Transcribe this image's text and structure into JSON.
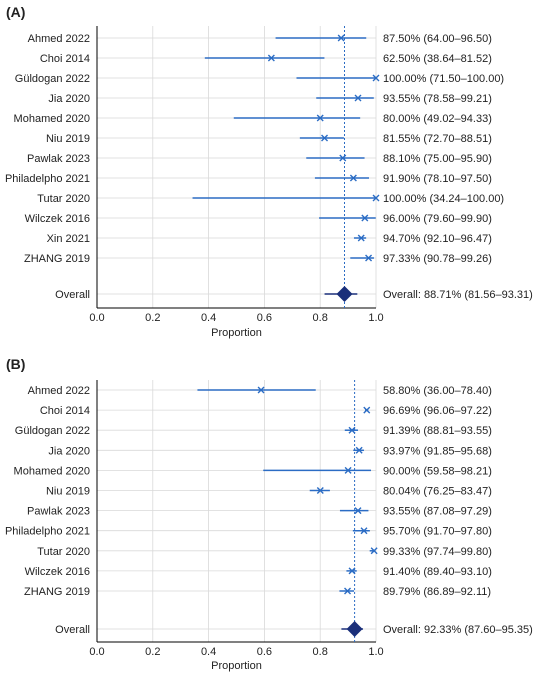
{
  "colors": {
    "series": "#2b6cc4",
    "summary": "#1a2f7a",
    "grid": "#d9d9d9",
    "text": "#222222"
  },
  "chart_data": [
    {
      "panel_label": "(A)",
      "type": "forest",
      "xlabel": "Proportion",
      "xlim": [
        0,
        1
      ],
      "xticks": [
        "0.0",
        "0.2",
        "0.4",
        "0.6",
        "0.8",
        "1.0"
      ],
      "grid": true,
      "reference_line": 0.8871,
      "studies": [
        {
          "label": "Ahmed 2022",
          "est": 0.875,
          "lo": 0.64,
          "hi": 0.965,
          "ci_text": "87.50% (64.00–96.50)"
        },
        {
          "label": "Choi 2014",
          "est": 0.625,
          "lo": 0.3864,
          "hi": 0.8152,
          "ci_text": "62.50% (38.64–81.52)"
        },
        {
          "label": "Güldogan 2022",
          "est": 1.0,
          "lo": 0.715,
          "hi": 1.0,
          "ci_text": "100.00% (71.50–100.00)"
        },
        {
          "label": "Jia 2020",
          "est": 0.9355,
          "lo": 0.7858,
          "hi": 0.9921,
          "ci_text": "93.55% (78.58–99.21)"
        },
        {
          "label": "Mohamed 2020",
          "est": 0.8,
          "lo": 0.4902,
          "hi": 0.9433,
          "ci_text": "80.00% (49.02–94.33)"
        },
        {
          "label": "Niu 2019",
          "est": 0.8155,
          "lo": 0.727,
          "hi": 0.8851,
          "ci_text": "81.55% (72.70–88.51)"
        },
        {
          "label": "Pawlak 2023",
          "est": 0.881,
          "lo": 0.75,
          "hi": 0.959,
          "ci_text": "88.10% (75.00–95.90)"
        },
        {
          "label": "Philadelpho 2021",
          "est": 0.919,
          "lo": 0.781,
          "hi": 0.975,
          "ci_text": "91.90% (78.10–97.50)"
        },
        {
          "label": "Tutar 2020",
          "est": 1.0,
          "lo": 0.3424,
          "hi": 1.0,
          "ci_text": "100.00% (34.24–100.00)"
        },
        {
          "label": "Wilczek 2016",
          "est": 0.96,
          "lo": 0.796,
          "hi": 0.999,
          "ci_text": "96.00% (79.60–99.90)"
        },
        {
          "label": "Xin 2021",
          "est": 0.947,
          "lo": 0.921,
          "hi": 0.9647,
          "ci_text": "94.70% (92.10–96.47)"
        },
        {
          "label": "ZHANG 2019",
          "est": 0.9733,
          "lo": 0.9078,
          "hi": 0.9926,
          "ci_text": "97.33% (90.78–99.26)"
        }
      ],
      "overall": {
        "label": "Overall",
        "est": 0.8871,
        "lo": 0.8156,
        "hi": 0.9331,
        "ci_text": "Overall: 88.71% (81.56–93.31)"
      }
    },
    {
      "panel_label": "(B)",
      "type": "forest",
      "xlabel": "Proportion",
      "xlim": [
        0,
        1
      ],
      "xticks": [
        "0.0",
        "0.2",
        "0.4",
        "0.6",
        "0.8",
        "1.0"
      ],
      "grid": true,
      "reference_line": 0.9233,
      "studies": [
        {
          "label": "Ahmed 2022",
          "est": 0.588,
          "lo": 0.36,
          "hi": 0.784,
          "ci_text": "58.80% (36.00–78.40)"
        },
        {
          "label": "Choi 2014",
          "est": 0.9669,
          "lo": 0.9606,
          "hi": 0.9722,
          "ci_text": "96.69% (96.06–97.22)"
        },
        {
          "label": "Güldogan 2022",
          "est": 0.9139,
          "lo": 0.8881,
          "hi": 0.9355,
          "ci_text": "91.39% (88.81–93.55)"
        },
        {
          "label": "Jia 2020",
          "est": 0.9397,
          "lo": 0.9185,
          "hi": 0.9568,
          "ci_text": "93.97% (91.85–95.68)"
        },
        {
          "label": "Mohamed 2020",
          "est": 0.9,
          "lo": 0.5958,
          "hi": 0.9821,
          "ci_text": "90.00% (59.58–98.21)"
        },
        {
          "label": "Niu 2019",
          "est": 0.8004,
          "lo": 0.7625,
          "hi": 0.8347,
          "ci_text": "80.04% (76.25–83.47)"
        },
        {
          "label": "Pawlak 2023",
          "est": 0.9355,
          "lo": 0.8708,
          "hi": 0.9729,
          "ci_text": "93.55% (87.08–97.29)"
        },
        {
          "label": "Philadelpho 2021",
          "est": 0.957,
          "lo": 0.917,
          "hi": 0.978,
          "ci_text": "95.70% (91.70–97.80)"
        },
        {
          "label": "Tutar 2020",
          "est": 0.9933,
          "lo": 0.9774,
          "hi": 0.998,
          "ci_text": "99.33% (97.74–99.80)"
        },
        {
          "label": "Wilczek 2016",
          "est": 0.914,
          "lo": 0.894,
          "hi": 0.931,
          "ci_text": "91.40% (89.40–93.10)"
        },
        {
          "label": "ZHANG 2019",
          "est": 0.8979,
          "lo": 0.8689,
          "hi": 0.9211,
          "ci_text": "89.79% (86.89–92.11)"
        }
      ],
      "overall": {
        "label": "Overall",
        "est": 0.9233,
        "lo": 0.876,
        "hi": 0.9535,
        "ci_text": "Overall: 92.33% (87.60–95.35)"
      }
    }
  ]
}
